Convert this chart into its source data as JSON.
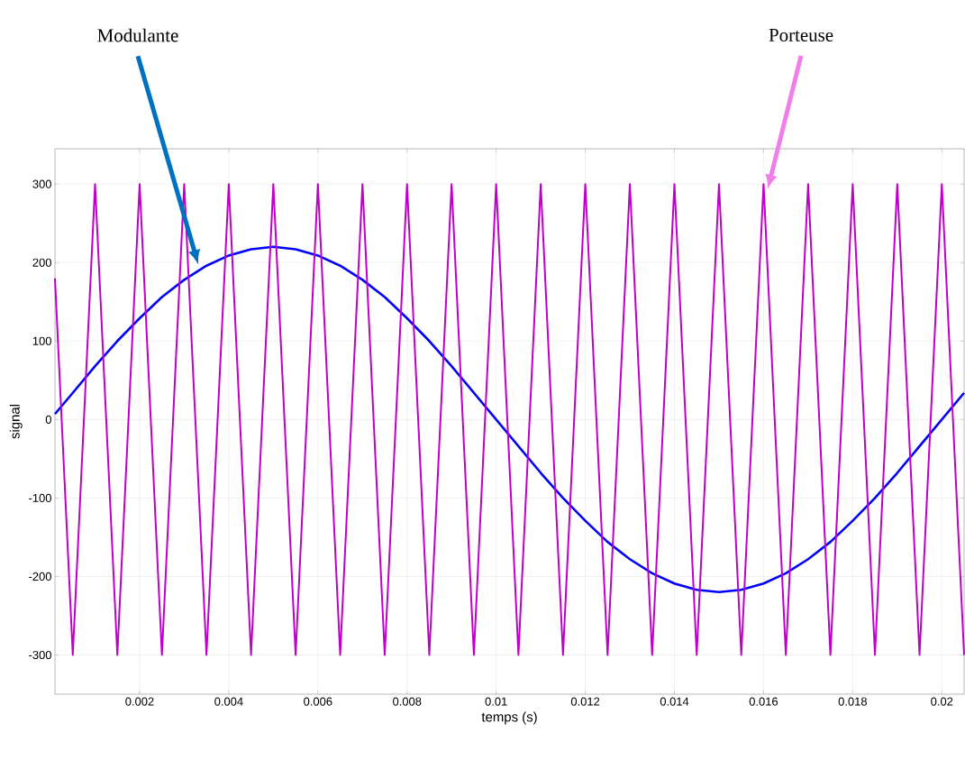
{
  "chart_data": {
    "type": "line",
    "xlabel": "temps (s)",
    "ylabel": "signal",
    "x": [
      0.0001,
      0.0005,
      0.001,
      0.0015,
      0.002,
      0.0025,
      0.003,
      0.0035,
      0.004,
      0.0045,
      0.005,
      0.0055,
      0.006,
      0.0065,
      0.007,
      0.0075,
      0.008,
      0.0085,
      0.009,
      0.0095,
      0.01,
      0.0105,
      0.011,
      0.0115,
      0.012,
      0.0125,
      0.013,
      0.0135,
      0.014,
      0.0145,
      0.015,
      0.0155,
      0.016,
      0.0165,
      0.017,
      0.0175,
      0.018,
      0.0185,
      0.019,
      0.0195,
      0.02,
      0.0205
    ],
    "series": [
      {
        "color": "#0000ff",
        "values": [
          7,
          34,
          68,
          100,
          129,
          156,
          178,
          196,
          209,
          217,
          220,
          217,
          209,
          196,
          178,
          156,
          129,
          100,
          68,
          34,
          0,
          -34,
          -68,
          -100,
          -129,
          -156,
          -178,
          -196,
          -209,
          -217,
          -220,
          -217,
          -209,
          -196,
          -178,
          -156,
          -129,
          -100,
          -68,
          -34,
          0,
          34
        ]
      },
      {
        "color": "#c000c8",
        "values": [
          180,
          -300,
          300,
          -300,
          300,
          -300,
          300,
          -300,
          300,
          -300,
          300,
          -300,
          300,
          -300,
          300,
          -300,
          300,
          -300,
          300,
          -300,
          300,
          -300,
          300,
          -300,
          300,
          -300,
          300,
          -300,
          300,
          -300,
          300,
          -300,
          300,
          -300,
          300,
          -300,
          300,
          -300,
          300,
          -300,
          300,
          -300
        ]
      }
    ],
    "xlim": [
      0.0001,
      0.0205
    ],
    "ylim": [
      -350,
      345
    ],
    "xticks": [
      0.002,
      0.004,
      0.006,
      0.008,
      0.01,
      0.012,
      0.014,
      0.016,
      0.018,
      0.02
    ],
    "yticks": [
      -300,
      -200,
      -100,
      0,
      100,
      200,
      300
    ],
    "grid": true,
    "annotations": [
      "Modulante",
      "Porteuse"
    ]
  }
}
